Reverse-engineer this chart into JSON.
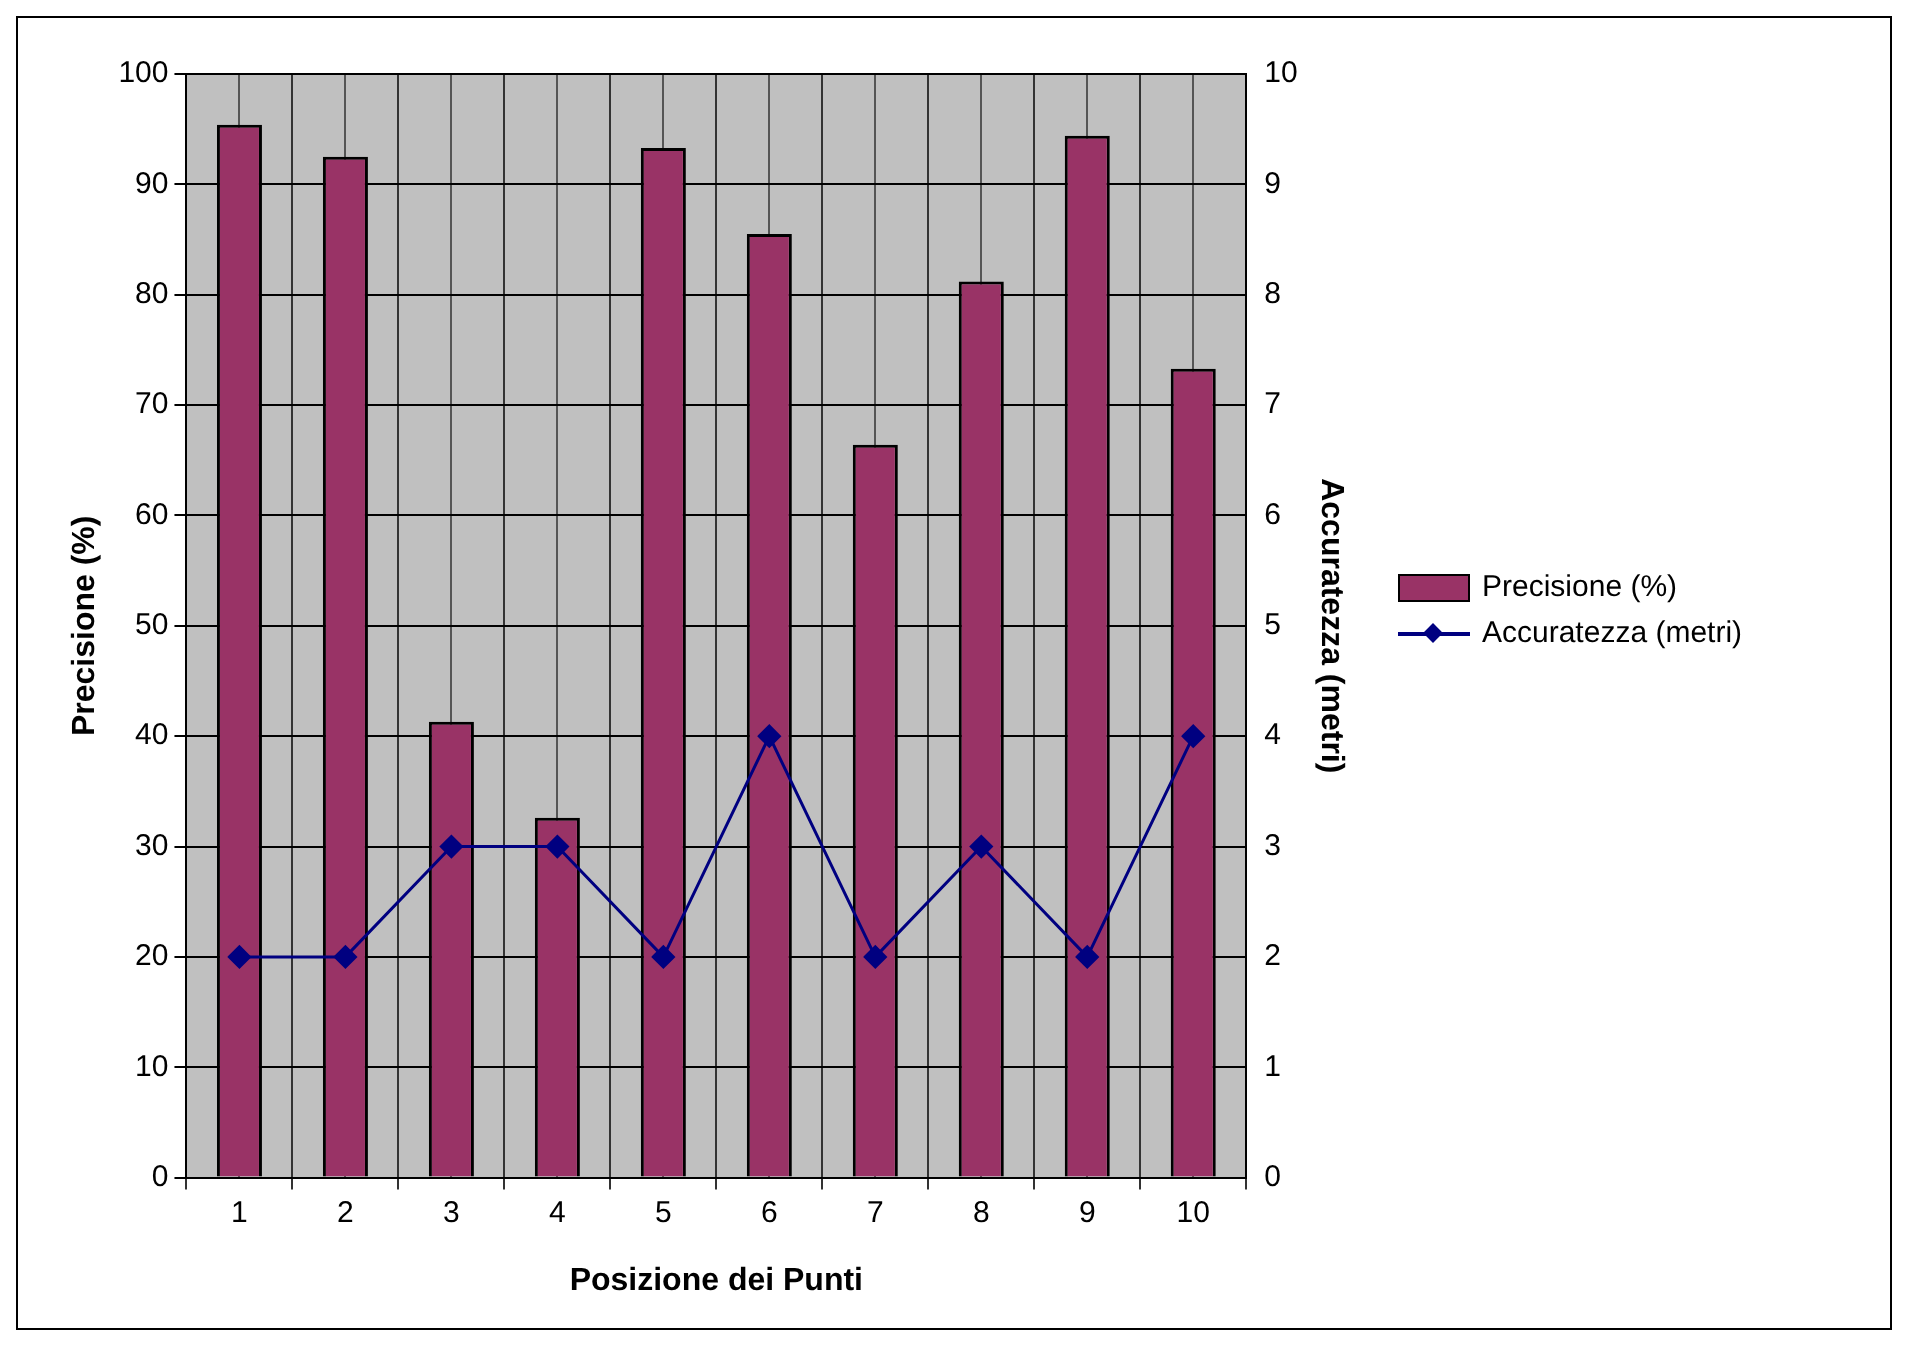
{
  "chart_data": {
    "type": "bar",
    "xlabel": "Posizione dei Punti",
    "ylabel": "Precisione (%)",
    "y2label": "Accuratezza (metri)",
    "categories": [
      "1",
      "2",
      "3",
      "4",
      "5",
      "6",
      "7",
      "8",
      "9",
      "10"
    ],
    "series": [
      {
        "name": "Precisione (%)",
        "color": "#993366",
        "values": [
          95.4,
          92.5,
          41.3,
          32.6,
          93.3,
          85.5,
          66.4,
          81.2,
          94.4,
          73.3
        ]
      },
      {
        "name": "Accuratezza (metri)",
        "type": "line",
        "axis": "y2",
        "color": "#000080",
        "marker": "diamond",
        "values": [
          2,
          2,
          3,
          3,
          2,
          4,
          2,
          3,
          2,
          4
        ]
      }
    ],
    "ylim": [
      0,
      100
    ],
    "yticks": [
      0,
      10,
      20,
      30,
      40,
      50,
      60,
      70,
      80,
      90,
      100
    ],
    "y2lim": [
      0,
      10
    ],
    "y2ticks": [
      0,
      1,
      2,
      3,
      4,
      5,
      6,
      7,
      8,
      9,
      10
    ],
    "grid": true,
    "legend": "right"
  }
}
